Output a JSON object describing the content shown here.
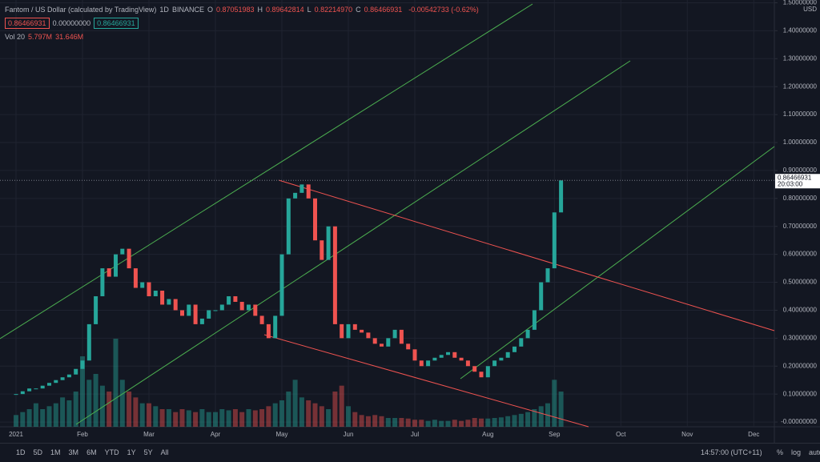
{
  "header": {
    "symbol": "Fantom / US Dollar (calculated by TradingView)",
    "interval": "1D",
    "exchange": "BINANCE",
    "ohlc": [
      {
        "label": "O",
        "value": "0.87051983"
      },
      {
        "label": "H",
        "value": "0.89642814"
      },
      {
        "label": "L",
        "value": "0.82214970"
      },
      {
        "label": "C",
        "value": "0.86466931"
      }
    ],
    "change": "-0.00542733 (-0.62%)",
    "boxes": [
      "0.86466931",
      "0.00000000",
      "0.86466931"
    ],
    "volume": {
      "label": "Vol 20",
      "values": [
        "5.797M",
        "31.646M"
      ]
    }
  },
  "price_scale": {
    "currency": "USD",
    "countdown": "20:03:00"
  },
  "toolbar": {
    "ranges": [
      "1D",
      "5D",
      "1M",
      "3M",
      "6M",
      "YTD",
      "1Y",
      "5Y",
      "All"
    ],
    "clock": "14:57:00 (UTC+11)",
    "options": [
      "%",
      "log",
      "auto"
    ]
  },
  "chart_data": {
    "type": "candlestick",
    "grid": true,
    "up_color": "#26a69a",
    "down_color": "#ef5350",
    "categories": [
      "2021",
      null,
      null,
      null,
      null,
      null,
      null,
      null,
      null,
      null,
      "Feb",
      null,
      null,
      null,
      null,
      null,
      null,
      null,
      null,
      null,
      "Mar",
      null,
      null,
      null,
      null,
      null,
      null,
      null,
      null,
      null,
      "Apr",
      null,
      null,
      null,
      null,
      null,
      null,
      null,
      null,
      null,
      "May",
      null,
      null,
      null,
      null,
      null,
      null,
      null,
      null,
      null,
      "Jun",
      null,
      null,
      null,
      null,
      null,
      null,
      null,
      null,
      null,
      "Jul",
      null,
      null,
      null,
      null,
      null,
      null,
      null,
      null,
      null,
      null,
      "Aug",
      null,
      null,
      null,
      null,
      null,
      null,
      null,
      null,
      null,
      "Sep",
      null,
      null,
      null,
      null,
      null,
      null,
      null,
      null,
      null,
      "Oct",
      null,
      null,
      null,
      null,
      null,
      null,
      null,
      null,
      null,
      "Nov",
      null,
      null,
      null,
      null,
      null,
      null,
      null,
      null,
      null,
      "Dec",
      null,
      null,
      null
    ],
    "values": [
      0.1,
      0.11,
      0.12,
      0.12,
      0.13,
      0.14,
      0.15,
      0.16,
      0.17,
      0.19,
      0.22,
      0.35,
      0.45,
      0.55,
      0.52,
      0.6,
      0.62,
      0.55,
      0.48,
      0.5,
      0.45,
      0.47,
      0.42,
      0.44,
      0.4,
      0.38,
      0.42,
      0.35,
      0.37,
      0.4,
      0.4,
      0.42,
      0.45,
      0.43,
      0.4,
      0.42,
      0.38,
      0.35,
      0.3,
      0.38,
      0.6,
      0.8,
      0.82,
      0.85,
      0.8,
      0.65,
      0.58,
      0.7,
      0.35,
      0.3,
      0.35,
      0.33,
      0.32,
      0.3,
      0.28,
      0.27,
      0.3,
      0.33,
      0.28,
      0.26,
      0.22,
      0.2,
      0.22,
      0.23,
      0.24,
      0.25,
      0.23,
      0.22,
      0.2,
      0.18,
      0.16,
      0.2,
      0.22,
      0.23,
      0.25,
      0.27,
      0.3,
      0.33,
      0.4,
      0.5,
      0.55,
      0.75,
      0.86466931,
      null,
      null,
      null,
      null,
      null,
      null,
      null,
      null,
      null,
      null,
      null,
      null,
      null,
      null,
      null,
      null,
      null,
      null,
      null,
      null,
      null,
      null,
      null,
      null,
      null,
      null,
      null,
      null,
      null,
      null,
      null,
      null
    ],
    "volumes": [
      20,
      25,
      30,
      40,
      30,
      35,
      40,
      50,
      45,
      60,
      120,
      80,
      90,
      70,
      60,
      150,
      80,
      60,
      50,
      40,
      40,
      35,
      30,
      30,
      25,
      30,
      28,
      25,
      30,
      25,
      25,
      30,
      28,
      30,
      25,
      30,
      28,
      30,
      35,
      40,
      45,
      60,
      80,
      50,
      45,
      40,
      35,
      30,
      60,
      70,
      35,
      25,
      20,
      18,
      20,
      18,
      15,
      15,
      15,
      14,
      12,
      12,
      10,
      12,
      10,
      10,
      12,
      10,
      12,
      15,
      14,
      14,
      15,
      16,
      18,
      20,
      22,
      25,
      30,
      35,
      40,
      80,
      60,
      null,
      null,
      null,
      null,
      null,
      null,
      null,
      null,
      null,
      null,
      null,
      null,
      null,
      null,
      null,
      null,
      null,
      null,
      null,
      null,
      null,
      null,
      null,
      null,
      null,
      null,
      null,
      null,
      null,
      null,
      null,
      null
    ],
    "ylim": [
      -0.017,
      1.51
    ],
    "yticks": [
      {
        "value": 0,
        "label": "-0.00000000"
      },
      {
        "value": 0.1,
        "label": "0.10000000"
      },
      {
        "value": 0.2,
        "label": "0.20000000"
      },
      {
        "value": 0.3,
        "label": "0.30000000"
      },
      {
        "value": 0.4,
        "label": "0.40000000"
      },
      {
        "value": 0.5,
        "label": "0.50000000"
      },
      {
        "value": 0.6,
        "label": "0.60000000"
      },
      {
        "value": 0.7,
        "label": "0.70000000"
      },
      {
        "value": 0.8,
        "label": "0.80000000"
      },
      {
        "value": 0.9,
        "label": "0.90000000"
      },
      {
        "value": 1.0,
        "label": "1.00000000"
      },
      {
        "value": 1.1,
        "label": "1.10000000"
      },
      {
        "value": 1.2,
        "label": "1.20000000"
      },
      {
        "value": 1.3,
        "label": "1.30000000"
      },
      {
        "value": 1.4,
        "label": "1.40000000"
      },
      {
        "value": 1.5,
        "label": "1.50000000"
      }
    ]
  }
}
